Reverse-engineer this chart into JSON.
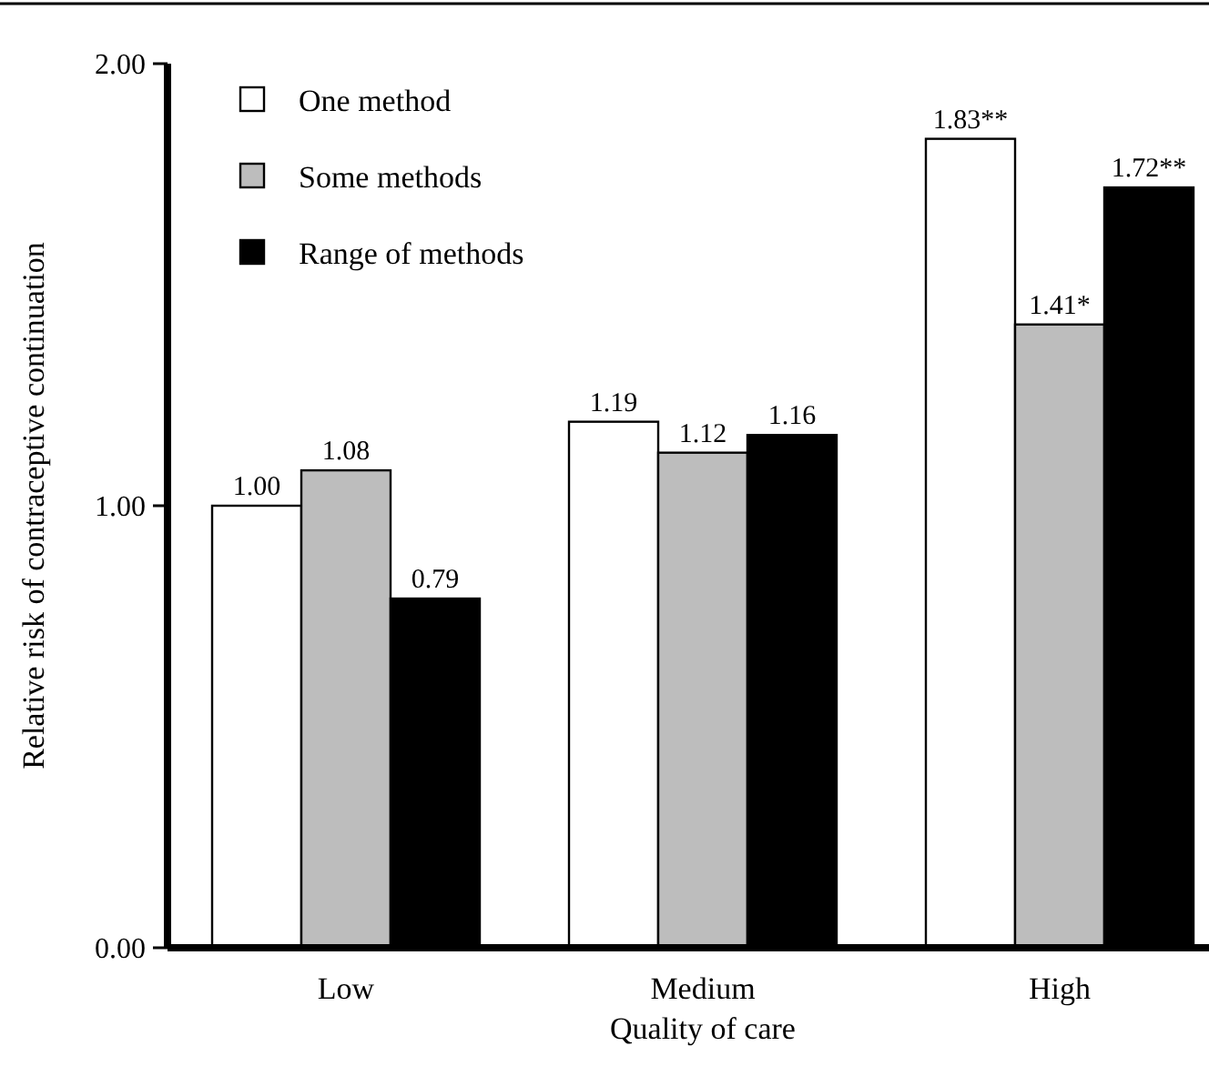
{
  "chart_data": {
    "type": "bar",
    "xlabel": "Quality of care",
    "ylabel": "Relative risk of contraceptive continuation",
    "categories": [
      "Low",
      "Medium",
      "High"
    ],
    "series": [
      {
        "name": "One method",
        "color": "#ffffff",
        "values": [
          1.0,
          1.19,
          1.83
        ],
        "value_labels": [
          "1.00",
          "1.19",
          "1.83**"
        ]
      },
      {
        "name": "Some methods",
        "color": "#bdbdbd",
        "values": [
          1.08,
          1.12,
          1.41
        ],
        "value_labels": [
          "1.08",
          "1.12",
          "1.41*"
        ]
      },
      {
        "name": "Range of methods",
        "color": "#000000",
        "values": [
          0.79,
          1.16,
          1.72
        ],
        "value_labels": [
          "0.79",
          "1.16",
          "1.72**"
        ]
      }
    ],
    "ylim": [
      0,
      2
    ],
    "yticks": [
      {
        "value": 0,
        "label": "0.00"
      },
      {
        "value": 1,
        "label": "1.00"
      },
      {
        "value": 2,
        "label": "2.00"
      }
    ],
    "grid": false,
    "legend": "top left"
  }
}
